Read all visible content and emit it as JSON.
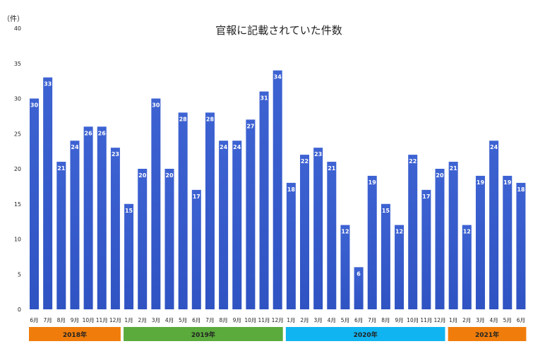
{
  "chart_data": {
    "type": "bar",
    "title": "官報に記載されていた件数",
    "ylabel": "（件）",
    "ylim": [
      0,
      40
    ],
    "yticks": [
      0,
      5,
      10,
      15,
      20,
      25,
      30,
      35,
      40
    ],
    "grid": false,
    "bar_color": "#3a5fcd",
    "categories": [
      "6月",
      "7月",
      "8月",
      "9月",
      "10月",
      "11月",
      "12月",
      "1月",
      "2月",
      "3月",
      "4月",
      "5月",
      "6月",
      "7月",
      "8月",
      "9月",
      "10月",
      "11月",
      "12月",
      "1月",
      "2月",
      "3月",
      "4月",
      "5月",
      "6月",
      "7月",
      "8月",
      "9月",
      "10月",
      "11月",
      "12月",
      "1月",
      "2月",
      "3月",
      "4月",
      "5月",
      "6月"
    ],
    "values": [
      30,
      33,
      21,
      24,
      26,
      26,
      23,
      15,
      20,
      30,
      20,
      28,
      17,
      28,
      24,
      24,
      27,
      31,
      34,
      18,
      22,
      23,
      21,
      12,
      6,
      19,
      15,
      12,
      22,
      17,
      20,
      21,
      12,
      19,
      24,
      19,
      18
    ],
    "year_groups": [
      {
        "label": "2018年",
        "start": 0,
        "end": 6,
        "color": "#f07d0b"
      },
      {
        "label": "2019年",
        "start": 7,
        "end": 18,
        "color": "#5aaa3c"
      },
      {
        "label": "2020年",
        "start": 19,
        "end": 30,
        "color": "#10b4f0"
      },
      {
        "label": "2021年",
        "start": 31,
        "end": 36,
        "color": "#f07d0b"
      }
    ]
  }
}
